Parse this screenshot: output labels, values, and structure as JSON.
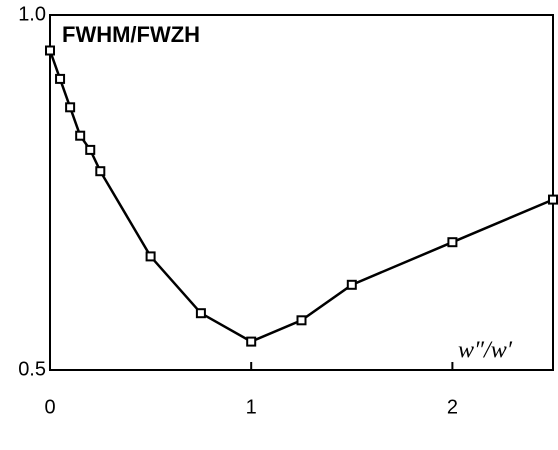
{
  "chart_data": {
    "type": "line",
    "title": "FWHM/FWZH",
    "annotation": "w″/w′",
    "x": [
      0,
      0.05,
      0.1,
      0.15,
      0.2,
      0.25,
      0.5,
      0.75,
      1,
      1.25,
      1.5,
      2,
      2.5
    ],
    "values": [
      0.95,
      0.91,
      0.87,
      0.83,
      0.81,
      0.78,
      0.66,
      0.58,
      0.54,
      0.57,
      0.62,
      0.68,
      0.74
    ],
    "color": "#000000",
    "xlim": [
      0,
      2.5
    ],
    "xticks": [
      0,
      1,
      2
    ],
    "ylim": [
      0.5,
      1
    ],
    "yticks": [
      {
        "value": 0.5,
        "label": "0.5"
      },
      {
        "value": 1,
        "label": "1.0"
      }
    ]
  }
}
